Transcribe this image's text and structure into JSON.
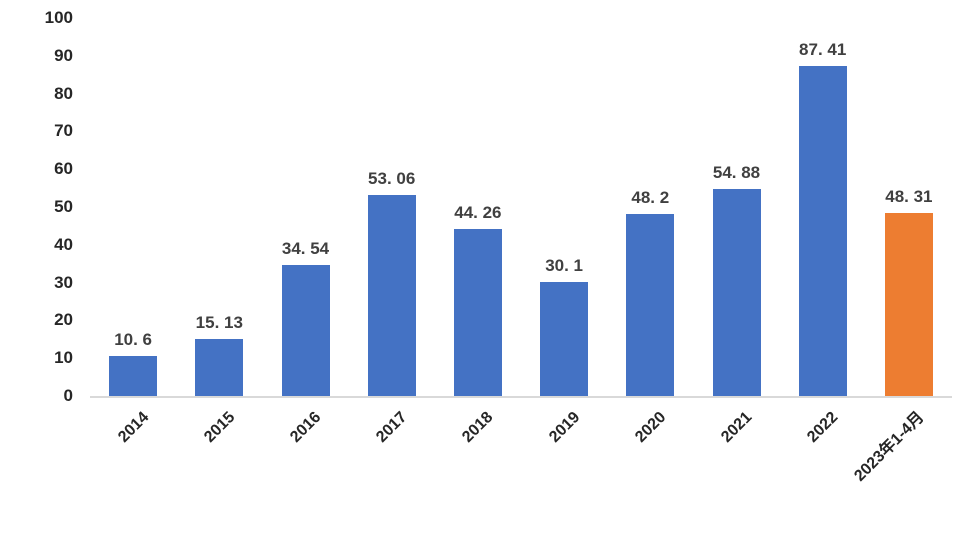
{
  "chart_data": {
    "type": "bar",
    "title": "",
    "xlabel": "",
    "ylabel": "",
    "categories": [
      "2014",
      "2015",
      "2016",
      "2017",
      "2018",
      "2019",
      "2020",
      "2021",
      "2022",
      "2023年1-4月"
    ],
    "values": [
      10.6,
      15.13,
      34.54,
      53.06,
      44.26,
      30.1,
      48.2,
      54.88,
      87.41,
      48.31
    ],
    "data_labels": [
      "10. 6",
      "15. 13",
      "34. 54",
      "53. 06",
      "44. 26",
      "30. 1",
      "48. 2",
      "54. 88",
      "87. 41",
      "48. 31"
    ],
    "ylim": [
      0,
      100
    ],
    "yticks": [
      0,
      10,
      20,
      30,
      40,
      50,
      60,
      70,
      80,
      90,
      100
    ],
    "grid": false,
    "legend": null,
    "colors": {
      "bar_default": "#4472C4",
      "bar_highlight": "#ED7D31",
      "highlight_index": 9,
      "axis_line": "#D9D9D9",
      "value_label": "#404040",
      "tick_label": "#262626",
      "background": "#FFFFFF"
    }
  }
}
